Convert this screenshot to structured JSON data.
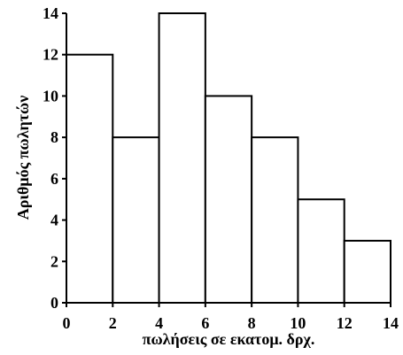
{
  "chart_data": {
    "type": "bar",
    "subtype": "histogram",
    "bins": [
      [
        0,
        2
      ],
      [
        2,
        4
      ],
      [
        4,
        6
      ],
      [
        6,
        8
      ],
      [
        8,
        10
      ],
      [
        10,
        12
      ],
      [
        12,
        14
      ]
    ],
    "values": [
      12,
      8,
      14,
      10,
      8,
      5,
      3
    ],
    "xlabel": "πωλήσεις σε εκατομ. δρχ.",
    "ylabel": "Αριθμός πωλητών",
    "xlim": [
      0,
      14
    ],
    "ylim": [
      0,
      14
    ],
    "x_ticks": [
      0,
      2,
      4,
      6,
      8,
      10,
      12,
      14
    ],
    "y_ticks": [
      0,
      2,
      4,
      6,
      8,
      10,
      12,
      14
    ],
    "grid": false,
    "bar_fill": "#ffffff",
    "bar_stroke": "#000000"
  }
}
